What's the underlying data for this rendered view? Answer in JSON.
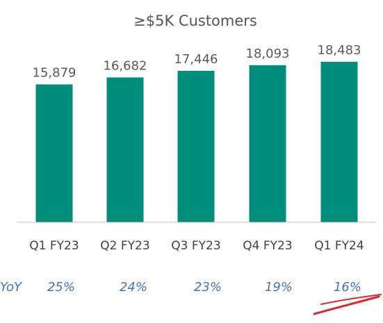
{
  "chart_data": {
    "type": "bar",
    "title": "≥$5K Customers",
    "categories": [
      "Q1 FY23",
      "Q2 FY23",
      "Q3 FY23",
      "Q4 FY23",
      "Q1 FY24"
    ],
    "values": [
      15879,
      16682,
      17446,
      18093,
      18483
    ],
    "value_labels": [
      "15,879",
      "16,682",
      "17,446",
      "18,093",
      "18,483"
    ],
    "ylim": [
      0,
      20000
    ],
    "grid": false,
    "bar_color": "#008e7c",
    "yoy": {
      "label": "YoY",
      "values": [
        "25%",
        "24%",
        "23%",
        "19%",
        "16%"
      ],
      "color": "#4472c4"
    },
    "annotation": {
      "type": "hand-drawn-underline",
      "target": "16%",
      "color": "#e0262b"
    }
  }
}
